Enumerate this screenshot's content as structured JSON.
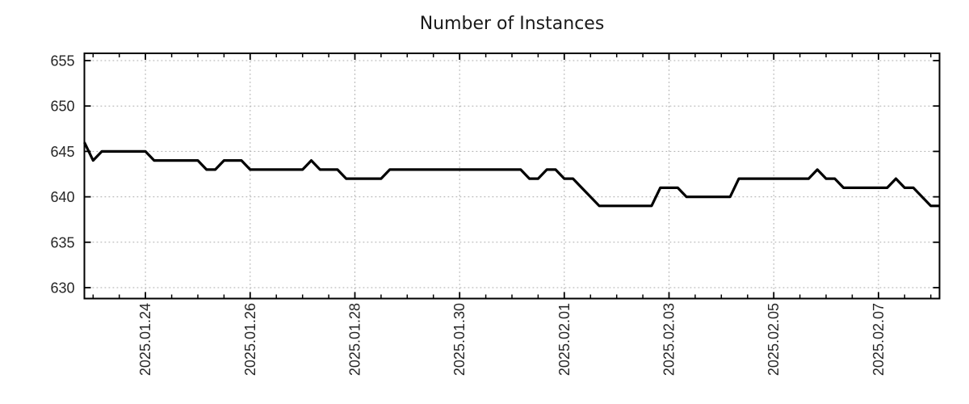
{
  "chart_data": {
    "type": "line",
    "title": "Number of Instances",
    "series_name": "instances",
    "x_start": "2025.01.22 20:00",
    "x_step_hours": 4,
    "values": [
      646,
      644,
      645,
      645,
      645,
      645,
      645,
      645,
      644,
      644,
      644,
      644,
      644,
      644,
      643,
      643,
      644,
      644,
      644,
      643,
      643,
      643,
      643,
      643,
      643,
      643,
      644,
      643,
      643,
      643,
      642,
      642,
      642,
      642,
      642,
      643,
      643,
      643,
      643,
      643,
      643,
      643,
      643,
      643,
      643,
      643,
      643,
      643,
      643,
      643,
      643,
      642,
      642,
      643,
      643,
      642,
      642,
      641,
      640,
      639,
      639,
      639,
      639,
      639,
      639,
      639,
      641,
      641,
      641,
      640,
      640,
      640,
      640,
      640,
      640,
      642,
      642,
      642,
      642,
      642,
      642,
      642,
      642,
      642,
      643,
      642,
      642,
      641,
      641,
      641,
      641,
      641,
      641,
      642,
      641,
      641,
      640,
      639,
      639
    ],
    "x_major_ticks": [
      {
        "index": 7,
        "label": "2025.01.24"
      },
      {
        "index": 19,
        "label": "2025.01.26"
      },
      {
        "index": 31,
        "label": "2025.01.28"
      },
      {
        "index": 43,
        "label": "2025.01.30"
      },
      {
        "index": 55,
        "label": "2025.02.01"
      },
      {
        "index": 67,
        "label": "2025.02.03"
      },
      {
        "index": 79,
        "label": "2025.02.05"
      },
      {
        "index": 91,
        "label": "2025.02.07"
      }
    ],
    "x_minor_tick_start_index": 1,
    "x_minor_tick_every": 3,
    "y_ticks": [
      630,
      635,
      640,
      645,
      650,
      655
    ],
    "ylim": [
      628.8,
      655.8
    ],
    "grid": "dotted",
    "legend": "none",
    "colors": {
      "line": "#000000",
      "grid": "#aaaaaa",
      "axis": "#000000",
      "text": "#262626"
    }
  }
}
